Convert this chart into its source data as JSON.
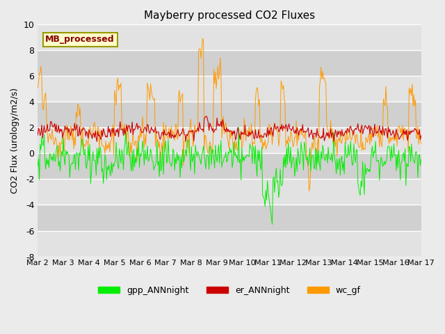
{
  "title": "Mayberry processed CO2 Fluxes",
  "ylabel": "CO2 Flux (urology/m2/s)",
  "ylim": [
    -8,
    10
  ],
  "yticks": [
    -8,
    -6,
    -4,
    -2,
    0,
    2,
    4,
    6,
    8,
    10
  ],
  "n_days": 15,
  "xtick_labels": [
    "Mar 2",
    "Mar 3",
    "Mar 4",
    "Mar 5",
    "Mar 6",
    "Mar 7",
    "Mar 8",
    "Mar 9",
    "Mar 10",
    "Mar 11",
    "Mar 12",
    "Mar 13",
    "Mar 14",
    "Mar 15",
    "Mar 16",
    "Mar 17"
  ],
  "legend_label": "MB_processed",
  "series_labels": [
    "gpp_ANNnight",
    "er_ANNnight",
    "wc_gf"
  ],
  "gpp_color": "#00ee00",
  "er_color": "#cc0000",
  "wc_color": "#ff9900",
  "legend_box_facecolor": "#ffffcc",
  "legend_box_edgecolor": "#999900",
  "legend_text_color": "#880000",
  "fig_facecolor": "#ebebeb",
  "band_colors": [
    "#e2e2e2",
    "#d0d0d0"
  ],
  "grid_color": "#ffffff",
  "n_points": 480
}
